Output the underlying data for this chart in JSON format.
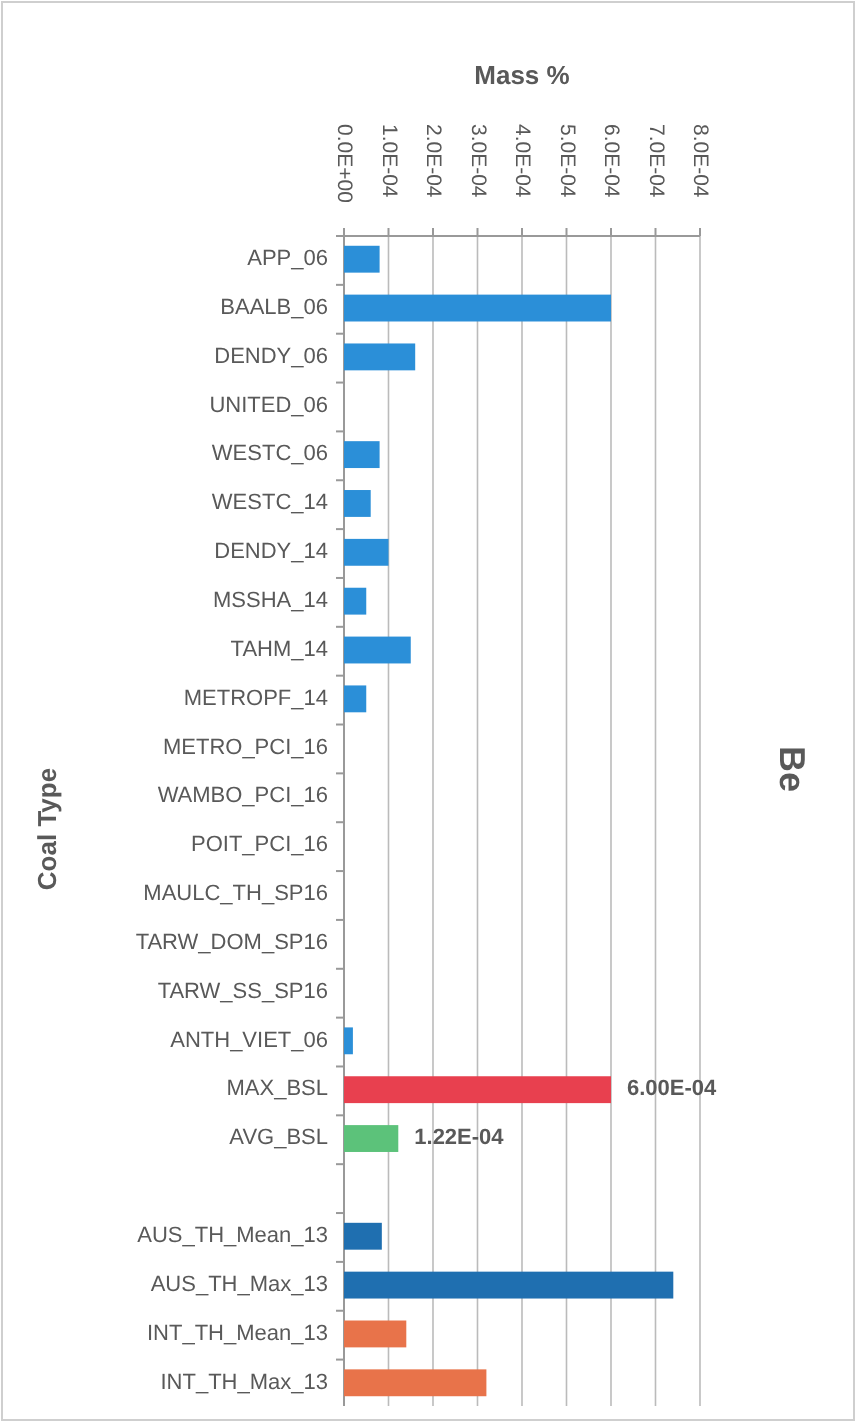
{
  "chart_data": {
    "type": "bar",
    "orientation": "horizontal",
    "title": "Be",
    "xlabel": "Mass %",
    "ylabel": "Coal Type",
    "categories": [
      "APP_06",
      "BAALB_06",
      "DENDY_06",
      "UNITED_06",
      "WESTC_06",
      "WESTC_14",
      "DENDY_14",
      "MSSHA_14",
      "TAHM_14",
      "METROPF_14",
      "METRO_PCI_16",
      "WAMBO_PCI_16",
      "POIT_PCI_16",
      "MAULC_TH_SP16",
      "TARW_DOM_SP16",
      "TARW_SS_SP16",
      "ANTH_VIET_06",
      "MAX_BSL",
      "AVG_BSL",
      null,
      "AUS_TH_Mean_13",
      "AUS_TH_Max_13",
      "INT_TH_Mean_13",
      "INT_TH_Max_13"
    ],
    "values": [
      8e-05,
      0.0006,
      0.00016,
      0,
      8e-05,
      6e-05,
      0.0001,
      5e-05,
      0.00015,
      5e-05,
      0,
      0,
      0,
      0,
      0,
      0,
      2e-05,
      0.0006,
      0.000122,
      null,
      8.5e-05,
      0.00074,
      0.00014,
      0.00032
    ],
    "colors": [
      "#2b8fd8",
      "#2b8fd8",
      "#2b8fd8",
      "#2b8fd8",
      "#2b8fd8",
      "#2b8fd8",
      "#2b8fd8",
      "#2b8fd8",
      "#2b8fd8",
      "#2b8fd8",
      "#2b8fd8",
      "#2b8fd8",
      "#2b8fd8",
      "#2b8fd8",
      "#2b8fd8",
      "#2b8fd8",
      "#2b8fd8",
      "#e8404f",
      "#5cc27a",
      null,
      "#1f6fb0",
      "#1f6fb0",
      "#e8734a",
      "#e8734a"
    ],
    "value_labels": [
      null,
      null,
      null,
      null,
      null,
      null,
      null,
      null,
      null,
      null,
      null,
      null,
      null,
      null,
      null,
      null,
      null,
      "6.00E-04",
      "1.22E-04",
      null,
      null,
      null,
      null,
      null
    ],
    "xlim": [
      0,
      0.0008
    ],
    "xticks": [
      {
        "value": 0,
        "label": "0.0E+00"
      },
      {
        "value": 0.0001,
        "label": "1.0E-04"
      },
      {
        "value": 0.0002,
        "label": "2.0E-04"
      },
      {
        "value": 0.0003,
        "label": "3.0E-04"
      },
      {
        "value": 0.0004,
        "label": "4.0E-04"
      },
      {
        "value": 0.0005,
        "label": "5.0E-04"
      },
      {
        "value": 0.0006,
        "label": "6.0E-04"
      },
      {
        "value": 0.0007,
        "label": "7.0E-04"
      },
      {
        "value": 0.0008,
        "label": "8.0E-04"
      }
    ],
    "grid": "x"
  }
}
